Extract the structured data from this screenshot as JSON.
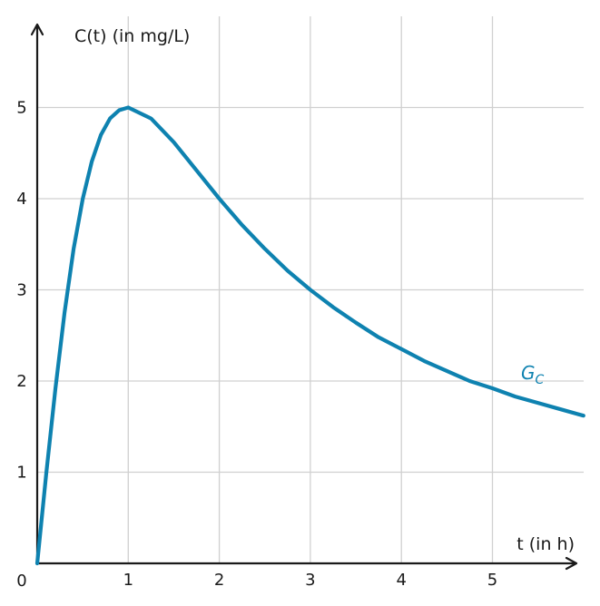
{
  "chart_data": {
    "type": "line",
    "xlabel": "t (in h)",
    "ylabel": "C(t) (in mg/L)",
    "origin_label": "0",
    "xlim": [
      0,
      6
    ],
    "ylim": [
      0,
      6
    ],
    "x_ticks": [
      1,
      2,
      3,
      4,
      5
    ],
    "y_ticks": [
      1,
      2,
      3,
      4,
      5
    ],
    "grid": true,
    "series": [
      {
        "name": "G",
        "name_subscript": "C",
        "color": "#0e82b0",
        "x": [
          0,
          0.1,
          0.2,
          0.3,
          0.4,
          0.5,
          0.6,
          0.7,
          0.8,
          0.9,
          1.0,
          1.25,
          1.5,
          1.75,
          2.0,
          2.25,
          2.5,
          2.75,
          3.0,
          3.25,
          3.5,
          3.75,
          4.0,
          4.25,
          4.5,
          4.75,
          5.0,
          5.25,
          5.5,
          5.75,
          6.0
        ],
        "y": [
          0,
          0.99,
          1.92,
          2.75,
          3.45,
          4.0,
          4.41,
          4.7,
          4.88,
          4.97,
          5.0,
          4.88,
          4.62,
          4.31,
          4.0,
          3.71,
          3.45,
          3.21,
          3.0,
          2.81,
          2.64,
          2.48,
          2.35,
          2.22,
          2.11,
          2.0,
          1.92,
          1.83,
          1.76,
          1.69,
          1.62
        ]
      }
    ]
  }
}
